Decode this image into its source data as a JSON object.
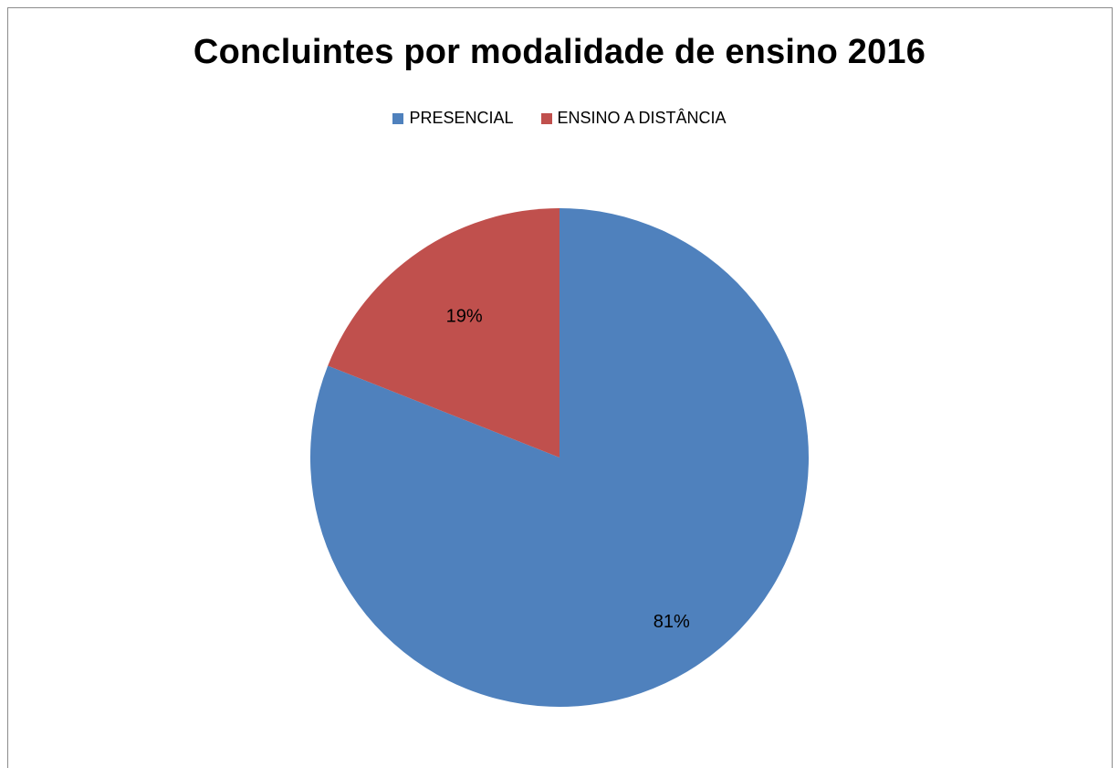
{
  "chart_data": {
    "type": "pie",
    "title": "Concluintes por modalidade de ensino 2016",
    "categories": [
      "PRESENCIAL",
      "ENSINO A DISTÂNCIA"
    ],
    "values": [
      81,
      19
    ],
    "data_labels": [
      "81%",
      "19%"
    ],
    "colors": [
      "#4f81bd",
      "#c0504d"
    ],
    "legend_position": "top",
    "start_angle": "top, clockwise"
  }
}
